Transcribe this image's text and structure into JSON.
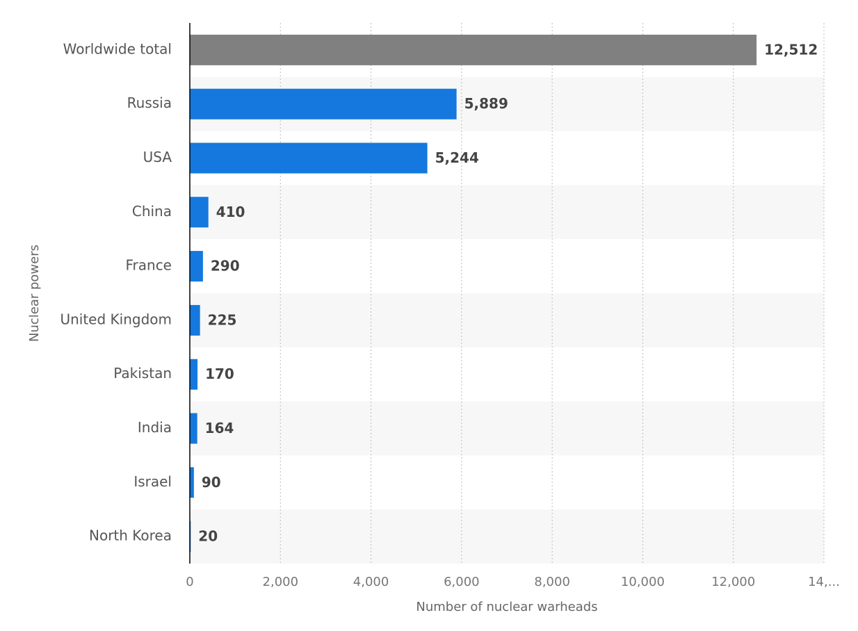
{
  "chart_data": {
    "type": "bar",
    "x_label": "Number of nuclear warheads",
    "y_label": "Nuclear powers",
    "categories": [
      "Worldwide total",
      "Russia",
      "USA",
      "China",
      "France",
      "United Kingdom",
      "Pakistan",
      "India",
      "Israel",
      "North Korea"
    ],
    "values": [
      12512,
      5889,
      5244,
      410,
      290,
      225,
      170,
      164,
      90,
      20
    ],
    "value_labels": [
      "12,512",
      "5,889",
      "5,244",
      "410",
      "290",
      "225",
      "170",
      "164",
      "90",
      "20"
    ],
    "colors": [
      "#808080",
      "#1478de",
      "#1478de",
      "#1478de",
      "#1478de",
      "#1478de",
      "#1478de",
      "#1478de",
      "#1478de",
      "#1478de"
    ],
    "xlim": [
      0,
      14000
    ],
    "xticks": [
      0,
      {
        "value": 2000,
        "label": "2,000"
      },
      {
        "value": 4000,
        "label": "4,000"
      },
      {
        "value": 6000,
        "label": "6,000"
      },
      {
        "value": 8000,
        "label": "8,000"
      },
      {
        "value": 10000,
        "label": "10,000"
      },
      {
        "value": 12000,
        "label": "12,000"
      },
      {
        "value": 14000,
        "label": "14,..."
      }
    ],
    "grid": true
  }
}
